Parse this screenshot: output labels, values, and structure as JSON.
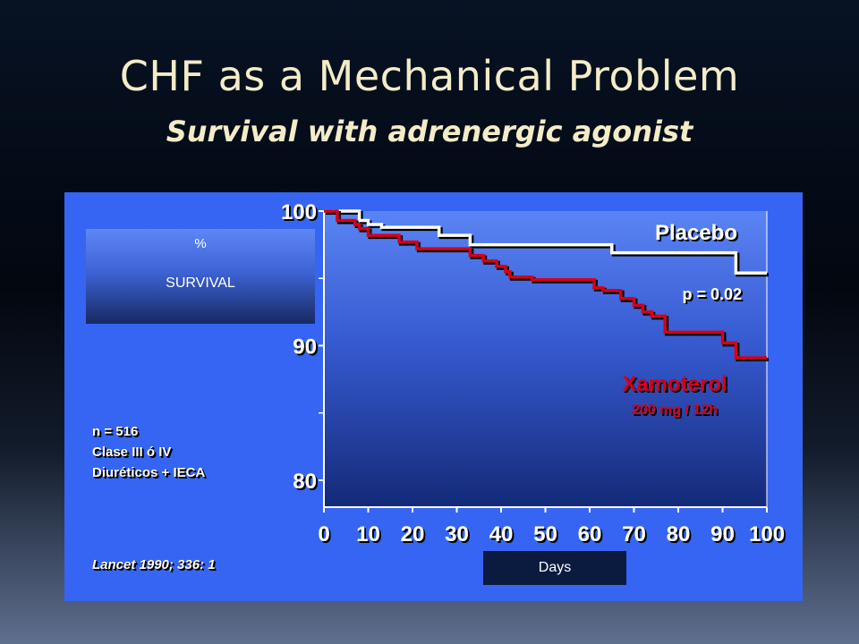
{
  "slide": {
    "title": "CHF as a Mechanical Problem",
    "subtitle": "Survival with adrenergic agonist"
  },
  "survival_box": {
    "symbol": "%",
    "label": "SURVIVAL"
  },
  "notes": [
    "n = 516",
    "Clase III ó IV",
    "Diuréticos + IECA"
  ],
  "citation": "Lancet 1990; 336: 1",
  "days_label": "Days",
  "chart_data": {
    "type": "line",
    "xlabel": "Days",
    "ylabel": "% SURVIVAL",
    "xlim": [
      0,
      100
    ],
    "ylim": [
      78,
      100
    ],
    "x_ticks": [
      0,
      10,
      20,
      30,
      40,
      50,
      60,
      70,
      80,
      90,
      100
    ],
    "y_ticks": [
      80,
      90,
      100
    ],
    "series": [
      {
        "name": "Placebo",
        "color": "#ffffff",
        "step": true,
        "points": [
          [
            0,
            100
          ],
          [
            8,
            100
          ],
          [
            8,
            99.3
          ],
          [
            10,
            99.3
          ],
          [
            10,
            99
          ],
          [
            13,
            99
          ],
          [
            13,
            98.8
          ],
          [
            26,
            98.8
          ],
          [
            26,
            98.2
          ],
          [
            33,
            98.2
          ],
          [
            33,
            97.5
          ],
          [
            65,
            97.5
          ],
          [
            65,
            96.9
          ],
          [
            93,
            96.9
          ],
          [
            93,
            95.4
          ],
          [
            100,
            95.4
          ]
        ]
      },
      {
        "name": "Xamoterol",
        "color": "#d6001a",
        "step": true,
        "points": [
          [
            0,
            100
          ],
          [
            3,
            100
          ],
          [
            3,
            99.3
          ],
          [
            7,
            99.3
          ],
          [
            7,
            99
          ],
          [
            8,
            99
          ],
          [
            8,
            98.7
          ],
          [
            10,
            98.7
          ],
          [
            10,
            98.2
          ],
          [
            17,
            98.2
          ],
          [
            17,
            97.7
          ],
          [
            21,
            97.7
          ],
          [
            21,
            97.2
          ],
          [
            33,
            97.2
          ],
          [
            33,
            96.7
          ],
          [
            36,
            96.7
          ],
          [
            36,
            96.3
          ],
          [
            39,
            96.3
          ],
          [
            39,
            95.9
          ],
          [
            41,
            95.9
          ],
          [
            41,
            95.5
          ],
          [
            42,
            95.5
          ],
          [
            42,
            95.1
          ],
          [
            47,
            95.1
          ],
          [
            47,
            94.9
          ],
          [
            61,
            94.9
          ],
          [
            61,
            94.3
          ],
          [
            63,
            94.3
          ],
          [
            63,
            94.1
          ],
          [
            67,
            94.1
          ],
          [
            67,
            93.5
          ],
          [
            70,
            93.5
          ],
          [
            70,
            93
          ],
          [
            72,
            93
          ],
          [
            72,
            92.5
          ],
          [
            74,
            92.5
          ],
          [
            74,
            92.2
          ],
          [
            77,
            92.2
          ],
          [
            77,
            91
          ],
          [
            90,
            91
          ],
          [
            90,
            90.2
          ],
          [
            93,
            90.2
          ],
          [
            93,
            89.1
          ],
          [
            100,
            89.1
          ]
        ]
      }
    ],
    "annotations": {
      "placebo_label": "Placebo",
      "p_value": "p = 0.02",
      "xamoterol_label": "Xamoterol",
      "xamoterol_dose": "200 mg / 12h"
    },
    "colors": {
      "panel": "#3565f2",
      "placebo": "#ffffff",
      "xamoterol": "#d6001a",
      "title": "#f4ecc8"
    }
  }
}
